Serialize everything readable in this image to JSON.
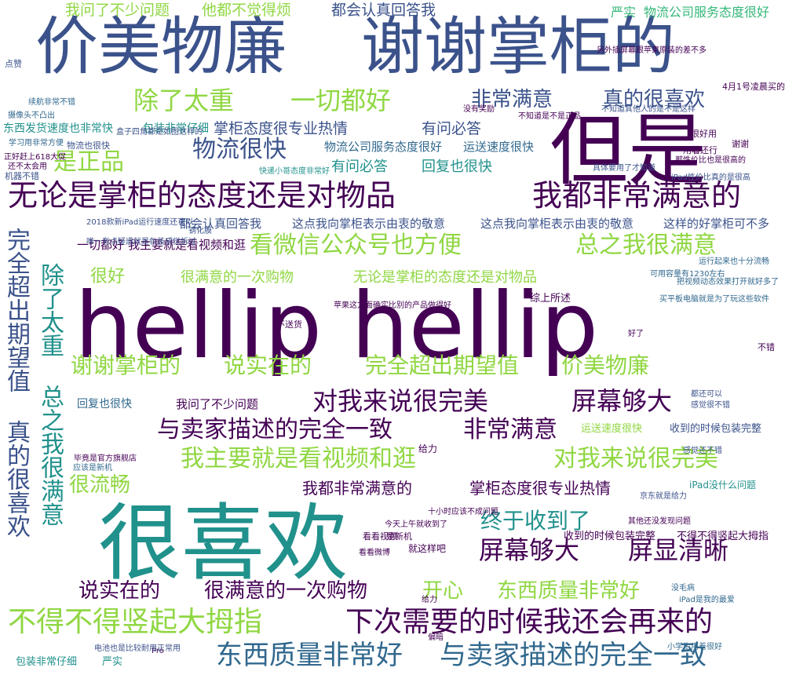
{
  "palette": {
    "purple": "#440154",
    "indigo": "#3b528b",
    "blue": "#31688e",
    "teal": "#21918c",
    "green": "#35b779",
    "lime": "#90d743",
    "yellow": "#c9d41c"
  },
  "words": [
    "hellip hellip",
    "价美物廉",
    "谢谢掌柜的",
    "但是",
    "很喜欢",
    "无论是掌柜的态度还是对物品",
    "我都非常满意的",
    "不得不得竖起大拇指",
    "下次需要的时候我还会再来的",
    "看微信公众号也方便",
    "总之我很满意",
    "除了太重",
    "一切都好",
    "非常满意",
    "真的很喜欢",
    "是正品",
    "物流很快",
    "我主要就是看视频和逛",
    "对我来说很完美",
    "屏幕够大",
    "屏显清晰",
    "东西质量非常好",
    "与卖家描述的完全一致",
    "说实在的",
    "很满意的一次购物",
    "谢谢掌柜的",
    "说实在的",
    "完全超出期望值",
    "价美物廉",
    "对我来说很完美",
    "屏幕够大",
    "与卖家描述的完全一致",
    "非常满意",
    "真的很喜欢",
    "完全超出期望值",
    "总之我很满意",
    "除了太重",
    "很流畅",
    "终于收到了",
    "开心",
    "东西质量非常好",
    "我都非常满意的",
    "掌柜态度很专业热情",
    "很好",
    "很满意的一次购物",
    "无论是掌柜的态度还是对物品",
    "掌柜态度很专业热情",
    "有问必答",
    "有问必答",
    "回复也很快",
    "物流公司服务态度很好",
    "运送速度很快",
    "我问了不少问题",
    "他都不觉得烦",
    "都会认真回答我",
    "严实",
    "物流公司服务态度很好",
    "都会认真回答我",
    "这点我向掌柜表示由衷的敬意",
    "这点我向掌柜表示由衷的敬意",
    "这样的好掌柜可不多",
    "一切都好",
    "我主要就是看视频和逛",
    "回复也很快",
    "我问了不少问题",
    "东西发货速度也非常快",
    "包装非常仔细",
    "包装非常仔细",
    "严实",
    "收到的时候包装完整",
    "不得不得竖起大拇指",
    "运送速度很快",
    "收到的时候包装完整",
    "综上所述",
    "iPad没什么问题",
    "不送货",
    "给力",
    "是新机",
    "就这样吧",
    "看看视频",
    "十小时应该不成问题",
    "物流也很快",
    "很好用",
    "用着还行",
    "谢谢",
    "点赞",
    "机器不错",
    "不错",
    "好了",
    "Pro",
    "偏暗",
    "给力",
    "4月1号凌晨买的",
    "iPad性价比真的是很高",
    "具体要用了才知道",
    "感觉还不错",
    "都还可以",
    "学习用非常方便",
    "续航非常不错",
    "摄像头不凸出",
    "苹果这方面确实比别的产品做得好",
    "今天上午就收到了",
    "应该是新机",
    "那性价比也是很高的",
    "快递小哥态度非常好",
    "正好赶上618大促",
    "还不太会用",
    "盒子四角都是如图这样的",
    "把视频动态效果打开就好多了",
    "运行起来也十分流畅",
    "买平板电脑就是为了玩这些软件",
    "可用容量有1230左右",
    "电池也是比较耐用正常用",
    "京东就是给力",
    "感觉很不错",
    "钢化膜",
    "唯一有点疑惑就是包装感觉拆过",
    "2018款新iPad运行速度还可以",
    "不知道其他人的是不是这样",
    "另外插屏幕跟苹果原装的差不多",
    "不知道是不是正品",
    "毕竟是官方旗舰店",
    "没有奖励",
    "看看微博",
    "其他还没发现问题",
    "iPad是我的最爱",
    "没毛病",
    "小学生用着很好",
    "价格比较合适",
    "非常满意的一次购物"
  ]
}
